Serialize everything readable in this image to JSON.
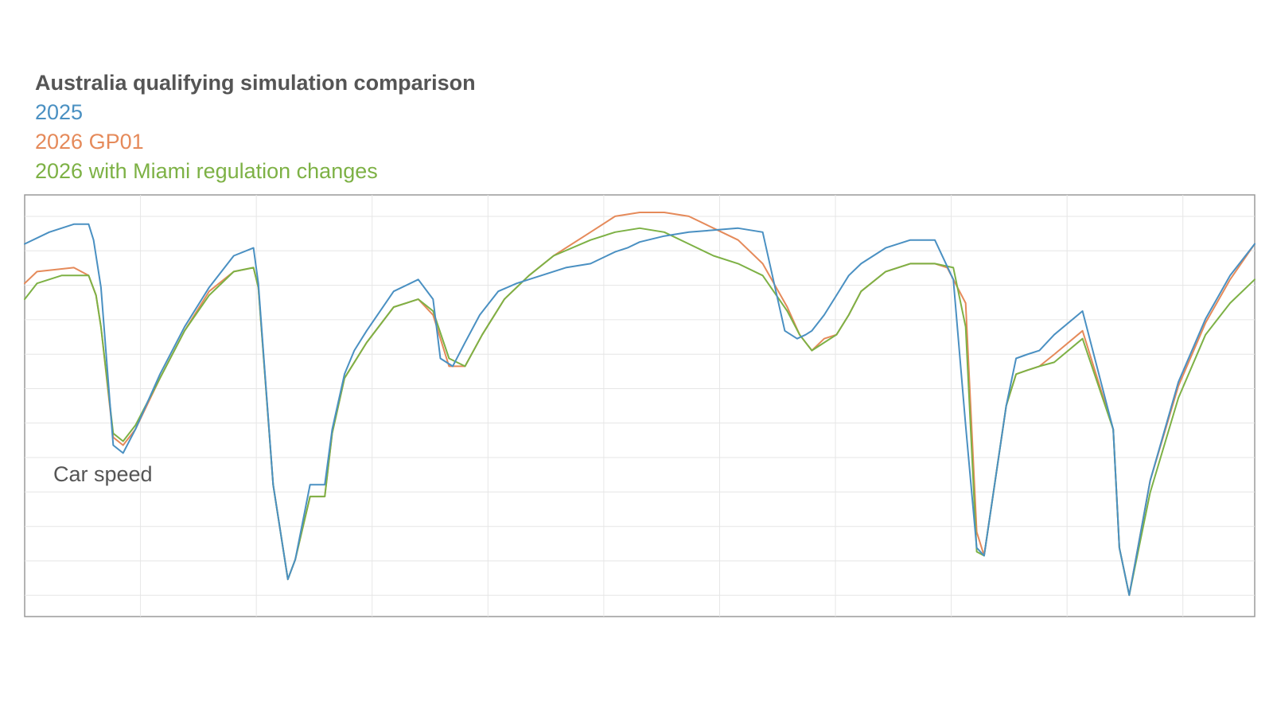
{
  "chart_data": {
    "type": "line",
    "title": "Australia qualifying simulation comparison",
    "xlabel": "",
    "ylabel": "",
    "annotation": "Car speed",
    "grid": true,
    "axis_tick_labels": false,
    "xlim": [
      0,
      100
    ],
    "ylim": [
      0,
      100
    ],
    "series": [
      {
        "name": "2025",
        "color": "#4a90c2",
        "x": [
          0,
          2,
          4,
          5.2,
          5.6,
          6.2,
          7.2,
          8,
          9,
          11,
          13,
          15,
          17,
          18.6,
          19,
          20.2,
          21.4,
          22,
          23.2,
          24.4,
          25,
          26,
          26.8,
          27.8,
          30,
          32,
          33.2,
          33.8,
          34.8,
          35.8,
          37,
          38.5,
          40,
          42,
          44,
          46,
          48,
          49,
          50,
          52,
          54,
          56,
          58,
          60,
          61,
          61.8,
          62.8,
          63.5,
          64,
          65,
          66,
          67,
          68,
          70,
          72,
          74,
          75.5,
          76.5,
          77.4,
          78,
          79.8,
          80.6,
          81.5,
          82.5,
          83.7,
          86,
          88.5,
          89,
          89.8,
          91.5,
          93.8,
          96,
          98,
          100
        ],
        "y": [
          91,
          94,
          96,
          96,
          92,
          80,
          40,
          38,
          44,
          58,
          70,
          80,
          88,
          90,
          81,
          30,
          6,
          11,
          30,
          30,
          44,
          58,
          64,
          69,
          79,
          82,
          77,
          62,
          60,
          66,
          73,
          79,
          81,
          83,
          85,
          86,
          89,
          90,
          91.5,
          93,
          94,
          94.5,
          95,
          94,
          80,
          69,
          67,
          68,
          69,
          73,
          78,
          83,
          86,
          90,
          92,
          92,
          82,
          45,
          14,
          12,
          50,
          62,
          63,
          64,
          68,
          74,
          44,
          14,
          2,
          31,
          56,
          72,
          83,
          91
        ]
      },
      {
        "name": "2026 GP01",
        "color": "#e58a5a",
        "x": [
          0,
          1,
          4,
          5.2,
          5.8,
          6.2,
          7.2,
          8,
          9,
          11,
          13,
          15,
          17,
          18.6,
          19,
          20.2,
          21.4,
          22,
          23.2,
          24.4,
          25,
          26,
          27.8,
          30,
          32,
          33.2,
          34.5,
          35.8,
          37.2,
          39,
          41,
          43,
          46,
          48,
          50,
          52,
          54,
          56,
          58,
          60,
          62,
          63,
          64,
          65,
          66,
          67,
          68,
          70,
          72,
          74,
          75,
          76.5,
          77.4,
          78,
          79.8,
          80.6,
          81.5,
          82.5,
          83.7,
          86,
          88.5,
          89,
          89.8,
          91.5,
          93.8,
          96,
          98,
          100
        ],
        "y": [
          81,
          84,
          85,
          83,
          78,
          70,
          42,
          40,
          44,
          57,
          69,
          79,
          84,
          85,
          80,
          30,
          6,
          11,
          27,
          27,
          43,
          57,
          66,
          75,
          77,
          73,
          60,
          60,
          68,
          77,
          83,
          88,
          94,
          98,
          99,
          99,
          98,
          95,
          92,
          86,
          75,
          68,
          64,
          67,
          68,
          73,
          79,
          84,
          86,
          86,
          85,
          76,
          18,
          12,
          50,
          58,
          59,
          60,
          63,
          69,
          44,
          14,
          2,
          31,
          55,
          71,
          82,
          91
        ]
      },
      {
        "name": "2026 with Miami regulation changes",
        "color": "#7db145",
        "x": [
          0,
          1,
          3,
          5.2,
          5.8,
          6.2,
          7.2,
          8,
          9,
          11,
          13,
          15,
          17,
          18.6,
          19,
          20.2,
          21.4,
          22,
          23.2,
          24.4,
          25,
          26,
          27.8,
          30,
          32,
          33.2,
          34.5,
          35.8,
          37.2,
          39,
          41,
          43,
          46,
          48,
          50,
          52,
          54,
          56,
          58,
          60,
          62,
          63,
          64,
          65,
          66,
          67,
          68,
          70,
          72,
          74,
          75.5,
          76.5,
          77.4,
          78,
          79.8,
          80.6,
          81.5,
          82.5,
          83.7,
          86,
          88.5,
          89,
          89.8,
          91.5,
          93.8,
          96,
          98,
          100
        ],
        "y": [
          77,
          81,
          83,
          83,
          78,
          70,
          43,
          41,
          45,
          57,
          69,
          78,
          84,
          85,
          80,
          30,
          6,
          11,
          27,
          27,
          43,
          57,
          66,
          75,
          77,
          74,
          62,
          60,
          68,
          77,
          83,
          88,
          92,
          94,
          95,
          94,
          91,
          88,
          86,
          83,
          74,
          68,
          64,
          66,
          68,
          73,
          79,
          84,
          86,
          86,
          85,
          70,
          13,
          12,
          50,
          58,
          59,
          60,
          61,
          67,
          44,
          14,
          2,
          28,
          52,
          68,
          76,
          82
        ]
      }
    ]
  }
}
